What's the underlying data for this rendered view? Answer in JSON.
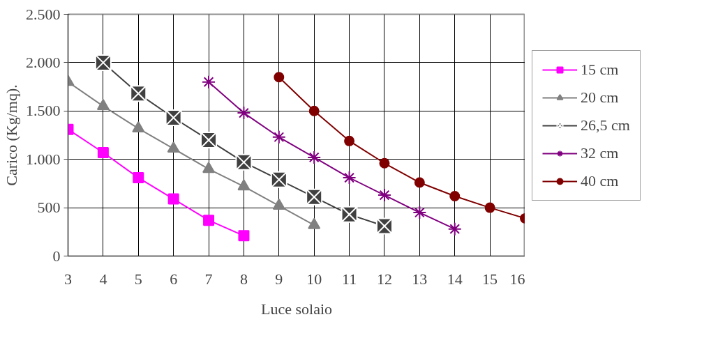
{
  "chart_data": {
    "type": "line",
    "xlabel": "Luce solaio",
    "ylabel": "Carico (Kg/mq).",
    "xlim": [
      3,
      16
    ],
    "xticks": [
      3,
      4,
      5,
      6,
      7,
      8,
      9,
      10,
      11,
      12,
      13,
      14,
      15,
      16
    ],
    "ylim": [
      0,
      2500
    ],
    "yticks": [
      0,
      {
        "value": 500,
        "label": "500"
      },
      {
        "value": 1000,
        "label": "1.000"
      },
      {
        "value": 1500,
        "label": "1.500"
      },
      {
        "value": 2000,
        "label": "2.000"
      },
      {
        "value": 2500,
        "label": "2.500"
      }
    ],
    "grid": true,
    "legend": "right",
    "series": [
      {
        "name": "15 cm",
        "color": "#ff00ff",
        "marker": "square",
        "x": [
          3,
          4,
          5,
          6,
          7,
          8
        ],
        "values": [
          1310,
          1070,
          810,
          590,
          370,
          210
        ]
      },
      {
        "name": "20 cm",
        "color": "#808080",
        "marker": "triangle",
        "x": [
          3,
          4,
          5,
          6,
          7,
          8,
          9,
          10
        ],
        "values": [
          1800,
          1550,
          1320,
          1110,
          900,
          720,
          520,
          320
        ]
      },
      {
        "name": "26,5 cm",
        "color": "#404040",
        "marker": "square_x",
        "x": [
          4,
          5,
          6,
          7,
          8,
          9,
          10,
          11,
          12
        ],
        "values": [
          2000,
          1680,
          1430,
          1200,
          970,
          790,
          610,
          430,
          310
        ]
      },
      {
        "name": "32 cm",
        "color": "#800080",
        "marker": "cross",
        "x": [
          7,
          8,
          9,
          10,
          11,
          12,
          13,
          14
        ],
        "values": [
          1800,
          1480,
          1230,
          1020,
          810,
          630,
          450,
          280
        ]
      },
      {
        "name": "40 cm",
        "color": "#800000",
        "marker": "circle",
        "x": [
          9,
          10,
          11,
          12,
          13,
          14,
          15,
          16
        ],
        "values": [
          1850,
          1500,
          1190,
          960,
          760,
          620,
          500,
          390
        ]
      }
    ]
  }
}
